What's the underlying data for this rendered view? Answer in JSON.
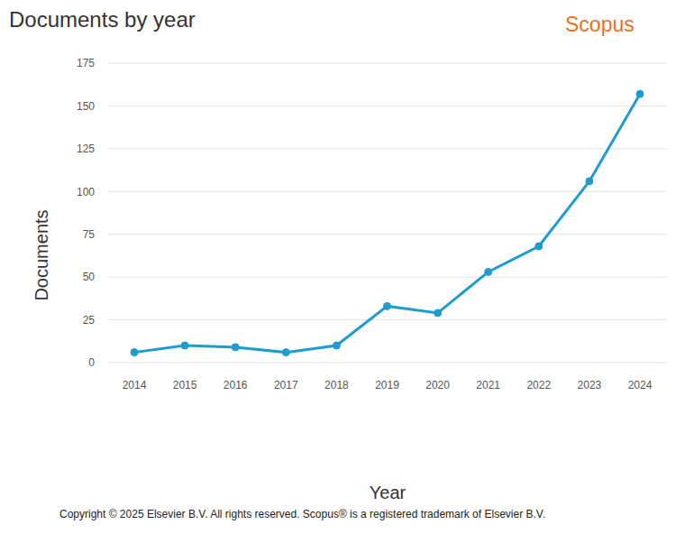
{
  "chart_data": {
    "type": "line",
    "title": "Documents by year",
    "brand": "Scopus",
    "footer": "Copyright © 2025 Elsevier B.V. All rights reserved. Scopus® is a registered trademark of Elsevier B.V.",
    "x_label": "Year",
    "y_label": "Documents",
    "categories": [
      "2014",
      "2015",
      "2016",
      "2017",
      "2018",
      "2019",
      "2020",
      "2021",
      "2022",
      "2023",
      "2024"
    ],
    "values": [
      6,
      10,
      9,
      6,
      10,
      33,
      29,
      53,
      68,
      106,
      157
    ],
    "color": "#1f9bcf",
    "marker": "circle",
    "ylim": [
      0,
      175
    ],
    "yticks": [
      0,
      25,
      50,
      75,
      100,
      125,
      150,
      175
    ],
    "grid": true
  }
}
